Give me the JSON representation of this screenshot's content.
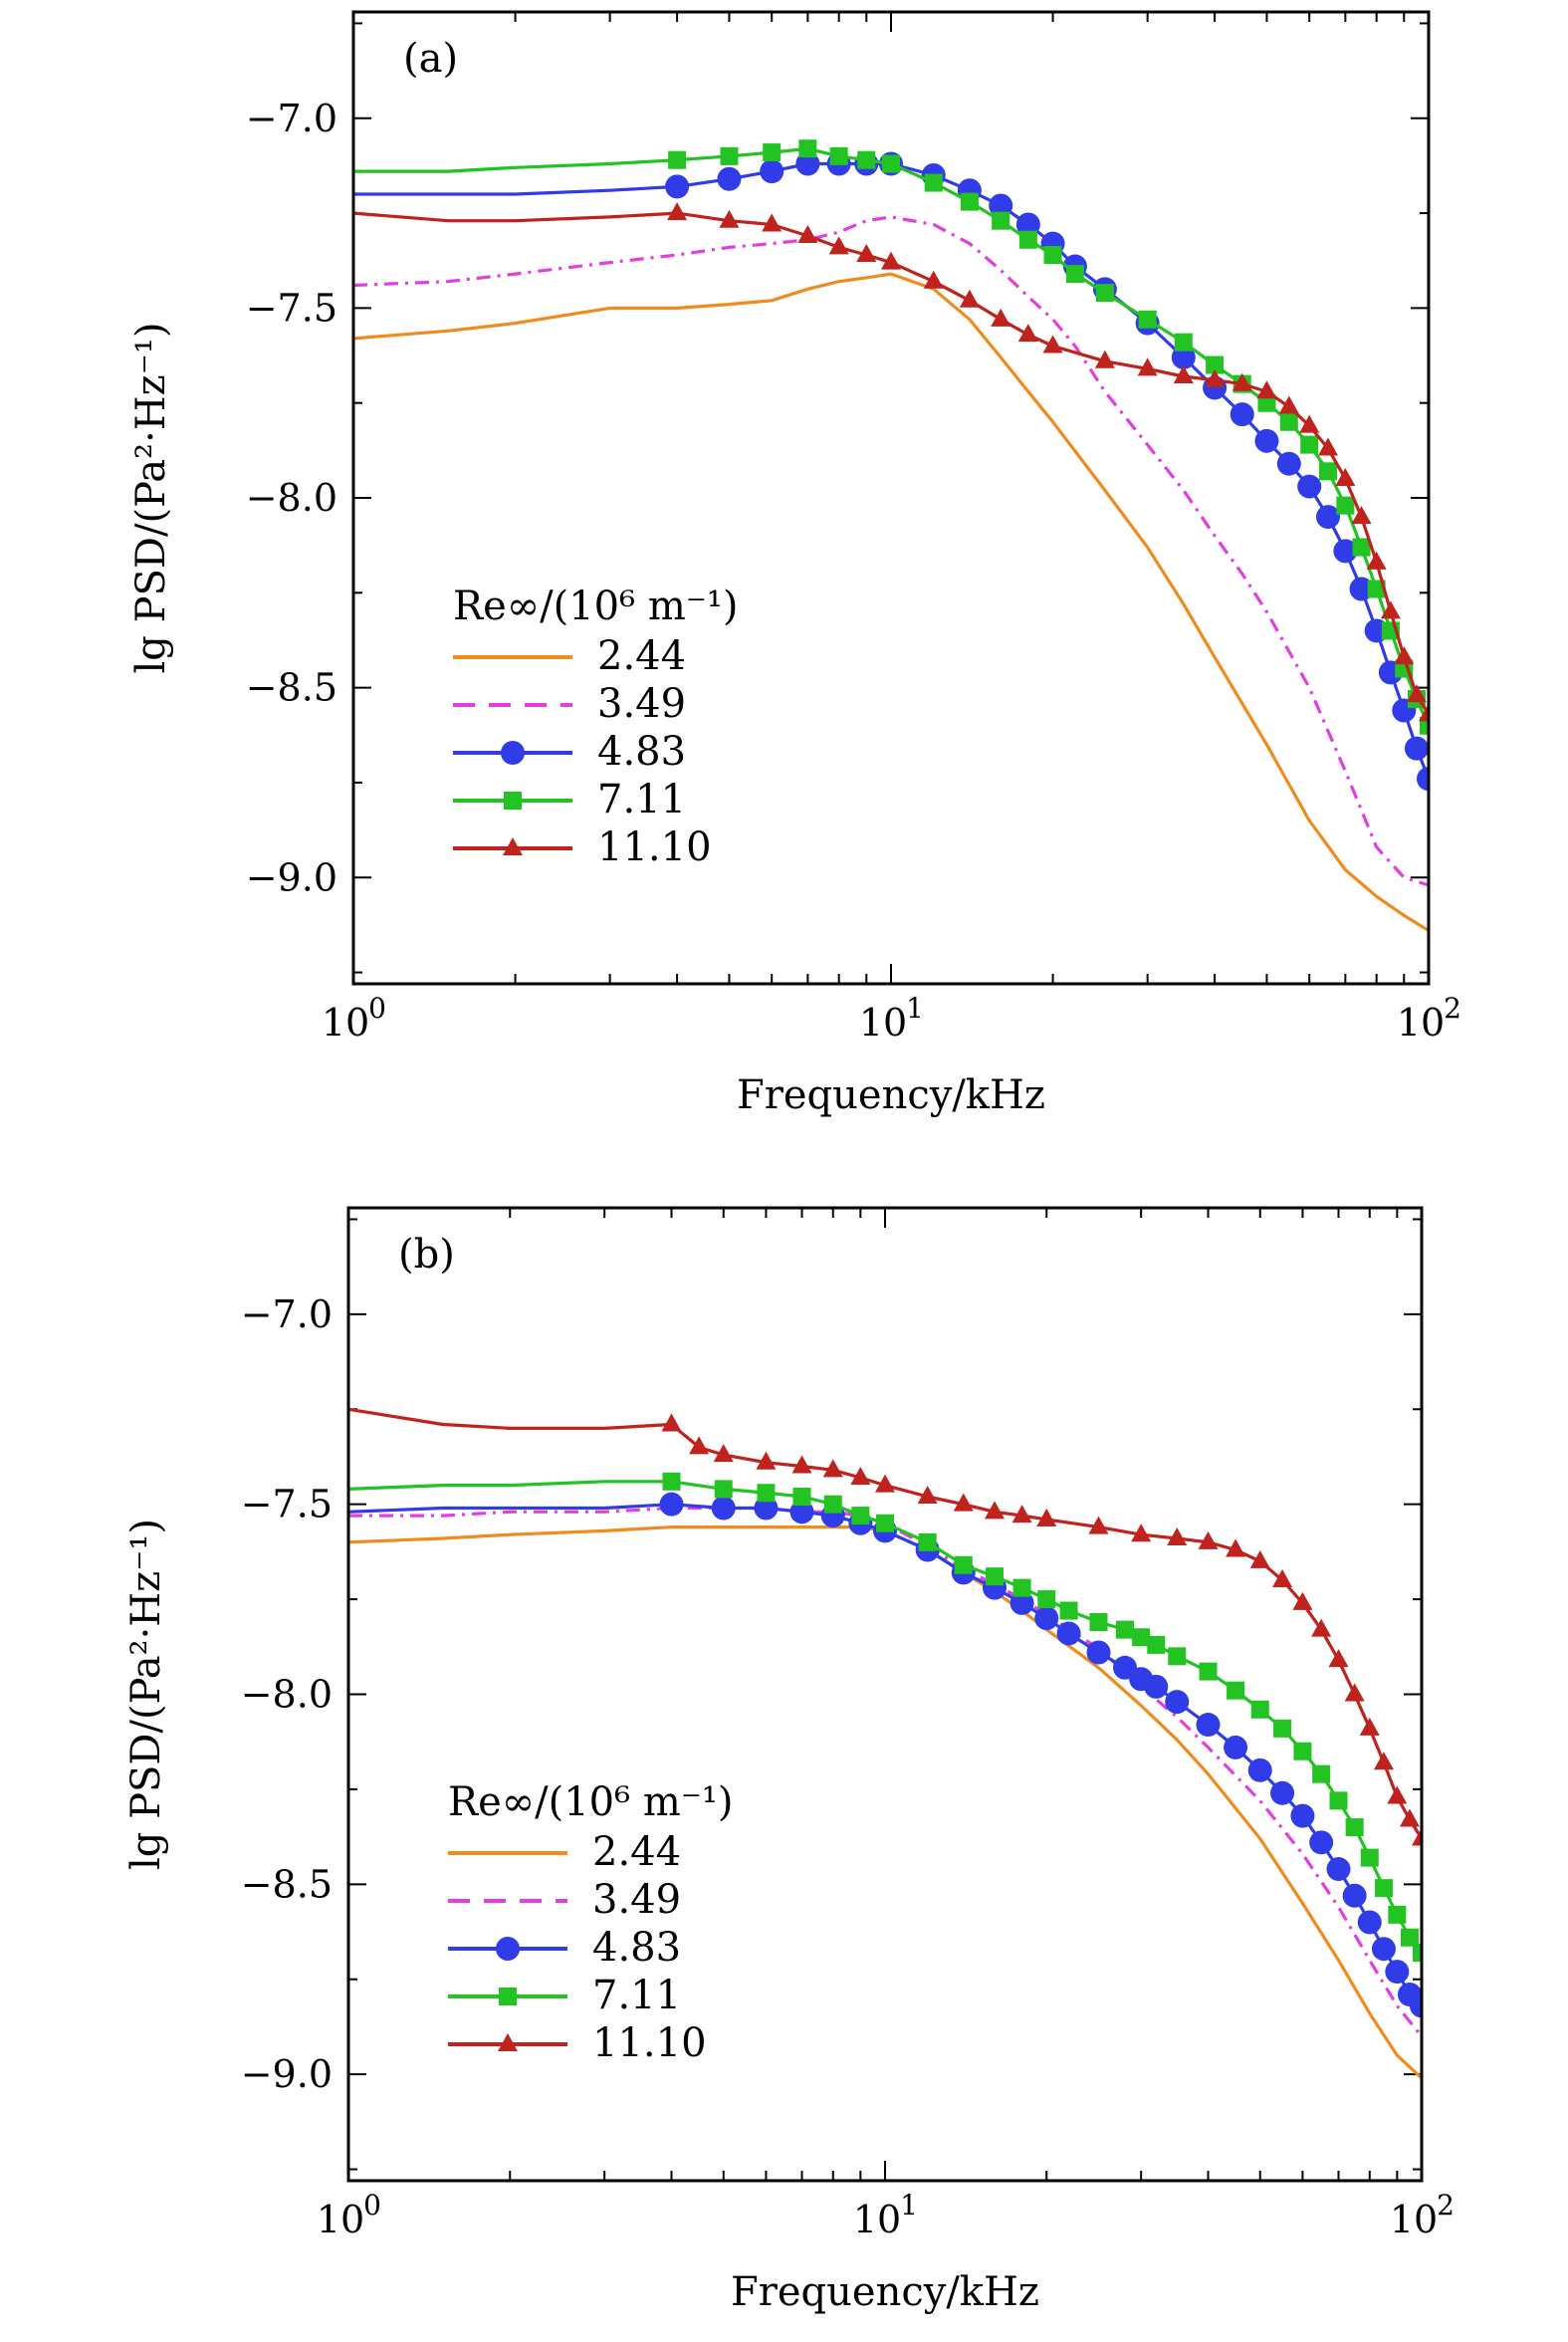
{
  "chart_data": [
    {
      "type": "line",
      "panel_label": "(a)",
      "xlabel": "Frequency/kHz",
      "ylabel": "lg PSD/(Pa²·Hz⁻¹)",
      "xscale": "log",
      "xlim": [
        1,
        100
      ],
      "ylim": [
        -9.28,
        -6.72
      ],
      "x_ticks": [
        {
          "value": 1,
          "base": "10",
          "exp": "0"
        },
        {
          "value": 10,
          "base": "10",
          "exp": "1"
        },
        {
          "value": 100,
          "base": "10",
          "exp": "2"
        }
      ],
      "y_ticks": [
        {
          "value": -7.0,
          "label": "−7.0"
        },
        {
          "value": -7.5,
          "label": "−7.5"
        },
        {
          "value": -8.0,
          "label": "−8.0"
        },
        {
          "value": -8.5,
          "label": "−8.5"
        },
        {
          "value": -9.0,
          "label": "−9.0"
        }
      ],
      "legend": {
        "title": "Re∞/(10⁶ m⁻¹)",
        "placement": "lower-left"
      },
      "series": [
        {
          "name": "2.44",
          "color": "#f08c1e",
          "style": "solid",
          "marker": "none",
          "x": [
            1,
            1.5,
            2,
            3,
            4,
            5,
            6,
            7,
            8,
            9,
            10,
            12,
            14,
            16,
            18,
            20,
            25,
            30,
            35,
            40,
            50,
            60,
            70,
            80,
            90,
            100
          ],
          "y": [
            -7.58,
            -7.56,
            -7.54,
            -7.5,
            -7.5,
            -7.49,
            -7.48,
            -7.45,
            -7.43,
            -7.42,
            -7.41,
            -7.45,
            -7.53,
            -7.63,
            -7.72,
            -7.8,
            -7.98,
            -8.13,
            -8.28,
            -8.42,
            -8.65,
            -8.85,
            -8.98,
            -9.05,
            -9.1,
            -9.14
          ]
        },
        {
          "name": "3.49",
          "color": "#e33ee0",
          "style": "dashdot",
          "marker": "none",
          "x": [
            1,
            1.5,
            2,
            3,
            4,
            5,
            6,
            7,
            8,
            9,
            10,
            12,
            14,
            16,
            18,
            20,
            22,
            25,
            30,
            35,
            40,
            45,
            50,
            60,
            70,
            80,
            90,
            100
          ],
          "y": [
            -7.44,
            -7.43,
            -7.41,
            -7.38,
            -7.36,
            -7.34,
            -7.33,
            -7.32,
            -7.3,
            -7.27,
            -7.26,
            -7.28,
            -7.33,
            -7.4,
            -7.47,
            -7.53,
            -7.6,
            -7.72,
            -7.86,
            -7.98,
            -8.1,
            -8.2,
            -8.3,
            -8.5,
            -8.72,
            -8.92,
            -9.0,
            -9.02
          ]
        },
        {
          "name": "4.83",
          "color": "#2f3ce8",
          "style": "solid",
          "marker": "circle",
          "x": [
            1,
            1.5,
            2,
            3,
            4,
            5,
            6,
            7,
            8,
            9,
            10,
            12,
            14,
            16,
            18,
            20,
            22,
            25,
            30,
            35,
            40,
            45,
            50,
            55,
            60,
            65,
            70,
            75,
            80,
            85,
            90,
            95,
            100
          ],
          "y": [
            -7.2,
            -7.2,
            -7.2,
            -7.19,
            -7.18,
            -7.16,
            -7.14,
            -7.12,
            -7.12,
            -7.12,
            -7.12,
            -7.15,
            -7.19,
            -7.23,
            -7.28,
            -7.33,
            -7.39,
            -7.45,
            -7.54,
            -7.63,
            -7.71,
            -7.78,
            -7.85,
            -7.91,
            -7.97,
            -8.05,
            -8.14,
            -8.24,
            -8.35,
            -8.46,
            -8.56,
            -8.66,
            -8.74
          ]
        },
        {
          "name": "7.11",
          "color": "#22c322",
          "style": "solid",
          "marker": "square",
          "x": [
            1,
            1.5,
            2,
            3,
            4,
            5,
            6,
            7,
            8,
            9,
            10,
            12,
            14,
            16,
            18,
            20,
            22,
            25,
            30,
            35,
            40,
            45,
            50,
            55,
            60,
            65,
            70,
            75,
            80,
            85,
            90,
            95,
            100
          ],
          "y": [
            -7.14,
            -7.14,
            -7.13,
            -7.12,
            -7.11,
            -7.1,
            -7.09,
            -7.08,
            -7.1,
            -7.11,
            -7.12,
            -7.17,
            -7.22,
            -7.27,
            -7.32,
            -7.36,
            -7.41,
            -7.46,
            -7.53,
            -7.59,
            -7.65,
            -7.7,
            -7.75,
            -7.8,
            -7.86,
            -7.93,
            -8.02,
            -8.13,
            -8.24,
            -8.35,
            -8.45,
            -8.53,
            -8.6
          ]
        },
        {
          "name": "11.10",
          "color": "#c0221e",
          "style": "solid",
          "marker": "triangle",
          "x": [
            1,
            1.5,
            2,
            3,
            4,
            5,
            6,
            7,
            8,
            9,
            10,
            12,
            14,
            16,
            18,
            20,
            25,
            30,
            35,
            40,
            45,
            50,
            55,
            60,
            65,
            70,
            75,
            80,
            85,
            90,
            95,
            100
          ],
          "y": [
            -7.25,
            -7.27,
            -7.27,
            -7.26,
            -7.25,
            -7.27,
            -7.28,
            -7.31,
            -7.34,
            -7.36,
            -7.38,
            -7.43,
            -7.48,
            -7.53,
            -7.57,
            -7.6,
            -7.64,
            -7.66,
            -7.68,
            -7.69,
            -7.7,
            -7.72,
            -7.76,
            -7.81,
            -7.87,
            -7.95,
            -8.05,
            -8.17,
            -8.3,
            -8.42,
            -8.52,
            -8.57
          ]
        }
      ]
    },
    {
      "type": "line",
      "panel_label": "(b)",
      "xlabel": "Frequency/kHz",
      "ylabel": "lg PSD/(Pa²·Hz⁻¹)",
      "xscale": "log",
      "xlim": [
        1,
        100
      ],
      "ylim": [
        -9.28,
        -6.72
      ],
      "x_ticks": [
        {
          "value": 1,
          "base": "10",
          "exp": "0"
        },
        {
          "value": 10,
          "base": "10",
          "exp": "1"
        },
        {
          "value": 100,
          "base": "10",
          "exp": "2"
        }
      ],
      "y_ticks": [
        {
          "value": -7.0,
          "label": "−7.0"
        },
        {
          "value": -7.5,
          "label": "−7.5"
        },
        {
          "value": -8.0,
          "label": "−8.0"
        },
        {
          "value": -8.5,
          "label": "−8.5"
        },
        {
          "value": -9.0,
          "label": "−9.0"
        }
      ],
      "legend": {
        "title": "Re∞/(10⁶ m⁻¹)",
        "placement": "lower-left"
      },
      "series": [
        {
          "name": "2.44",
          "color": "#f08c1e",
          "style": "solid",
          "marker": "none",
          "x": [
            1,
            1.5,
            2,
            3,
            4,
            5,
            6,
            7,
            8,
            9,
            10,
            12,
            14,
            16,
            18,
            20,
            25,
            30,
            35,
            40,
            50,
            60,
            70,
            80,
            90,
            100
          ],
          "y": [
            -7.6,
            -7.59,
            -7.58,
            -7.57,
            -7.56,
            -7.56,
            -7.56,
            -7.56,
            -7.56,
            -7.56,
            -7.57,
            -7.62,
            -7.68,
            -7.73,
            -7.78,
            -7.83,
            -7.93,
            -8.03,
            -8.12,
            -8.21,
            -8.38,
            -8.55,
            -8.7,
            -8.84,
            -8.95,
            -9.01
          ]
        },
        {
          "name": "3.49",
          "color": "#e33ee0",
          "style": "dashdot",
          "marker": "none",
          "x": [
            1,
            1.5,
            2,
            3,
            4,
            5,
            6,
            7,
            8,
            9,
            10,
            12,
            14,
            16,
            18,
            20,
            25,
            30,
            35,
            40,
            50,
            60,
            70,
            80,
            90,
            100
          ],
          "y": [
            -7.53,
            -7.53,
            -7.52,
            -7.52,
            -7.51,
            -7.51,
            -7.51,
            -7.52,
            -7.52,
            -7.53,
            -7.55,
            -7.61,
            -7.67,
            -7.71,
            -7.75,
            -7.79,
            -7.88,
            -7.98,
            -8.06,
            -8.14,
            -8.28,
            -8.42,
            -8.56,
            -8.7,
            -8.82,
            -8.9
          ]
        },
        {
          "name": "4.83",
          "color": "#2f3ce8",
          "style": "solid",
          "marker": "circle",
          "x": [
            1,
            1.5,
            2,
            3,
            4,
            5,
            6,
            7,
            8,
            9,
            10,
            12,
            14,
            16,
            18,
            20,
            22,
            25,
            28,
            30,
            32,
            35,
            40,
            45,
            50,
            55,
            60,
            65,
            70,
            75,
            80,
            85,
            90,
            95,
            100
          ],
          "y": [
            -7.52,
            -7.51,
            -7.51,
            -7.51,
            -7.5,
            -7.51,
            -7.51,
            -7.52,
            -7.53,
            -7.55,
            -7.57,
            -7.62,
            -7.68,
            -7.72,
            -7.76,
            -7.8,
            -7.84,
            -7.89,
            -7.93,
            -7.96,
            -7.98,
            -8.02,
            -8.08,
            -8.14,
            -8.2,
            -8.26,
            -8.32,
            -8.39,
            -8.46,
            -8.53,
            -8.6,
            -8.67,
            -8.73,
            -8.79,
            -8.82
          ]
        },
        {
          "name": "7.11",
          "color": "#22c322",
          "style": "solid",
          "marker": "square",
          "x": [
            1,
            1.5,
            2,
            3,
            4,
            5,
            6,
            7,
            8,
            9,
            10,
            12,
            14,
            16,
            18,
            20,
            22,
            25,
            28,
            30,
            32,
            35,
            40,
            45,
            50,
            55,
            60,
            65,
            70,
            75,
            80,
            85,
            90,
            95,
            100
          ],
          "y": [
            -7.46,
            -7.45,
            -7.45,
            -7.44,
            -7.44,
            -7.46,
            -7.47,
            -7.48,
            -7.5,
            -7.53,
            -7.55,
            -7.6,
            -7.66,
            -7.69,
            -7.72,
            -7.75,
            -7.78,
            -7.81,
            -7.83,
            -7.85,
            -7.87,
            -7.9,
            -7.94,
            -7.99,
            -8.04,
            -8.09,
            -8.15,
            -8.21,
            -8.28,
            -8.35,
            -8.43,
            -8.51,
            -8.58,
            -8.64,
            -8.68
          ]
        },
        {
          "name": "11.10",
          "color": "#c0221e",
          "style": "solid",
          "marker": "triangle",
          "x": [
            1,
            1.5,
            2,
            3,
            4,
            4.5,
            5,
            6,
            7,
            8,
            9,
            10,
            12,
            14,
            16,
            18,
            20,
            25,
            30,
            35,
            40,
            45,
            50,
            55,
            60,
            65,
            70,
            75,
            80,
            85,
            90,
            95,
            100
          ],
          "y": [
            -7.25,
            -7.29,
            -7.3,
            -7.3,
            -7.29,
            -7.35,
            -7.37,
            -7.39,
            -7.4,
            -7.41,
            -7.43,
            -7.45,
            -7.48,
            -7.5,
            -7.52,
            -7.53,
            -7.54,
            -7.56,
            -7.58,
            -7.59,
            -7.6,
            -7.62,
            -7.65,
            -7.7,
            -7.76,
            -7.83,
            -7.91,
            -8.0,
            -8.09,
            -8.18,
            -8.27,
            -8.33,
            -8.38
          ]
        }
      ]
    }
  ]
}
